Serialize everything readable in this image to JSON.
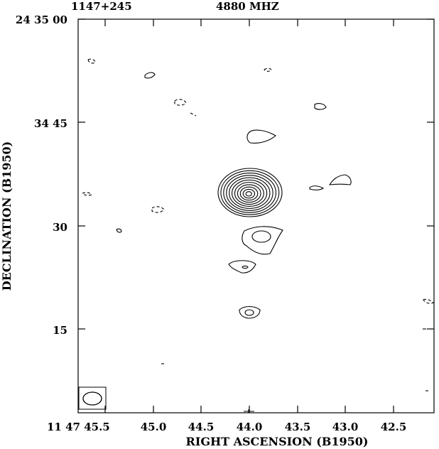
{
  "header": {
    "source_name": "1147+245",
    "frequency": "4880 MHZ"
  },
  "axes": {
    "x_label": "RIGHT ASCENSION (B1950)",
    "y_label": "DECLINATION (B1950)",
    "x_ticks": [
      "11 47 45.5",
      "45.0",
      "44.5",
      "44.0",
      "43.5",
      "43.0",
      "42.5"
    ],
    "y_ticks": [
      "24 35 00",
      "34 45",
      "30",
      "15"
    ]
  },
  "colors": {
    "ink": "#000000",
    "background": "#ffffff"
  }
}
